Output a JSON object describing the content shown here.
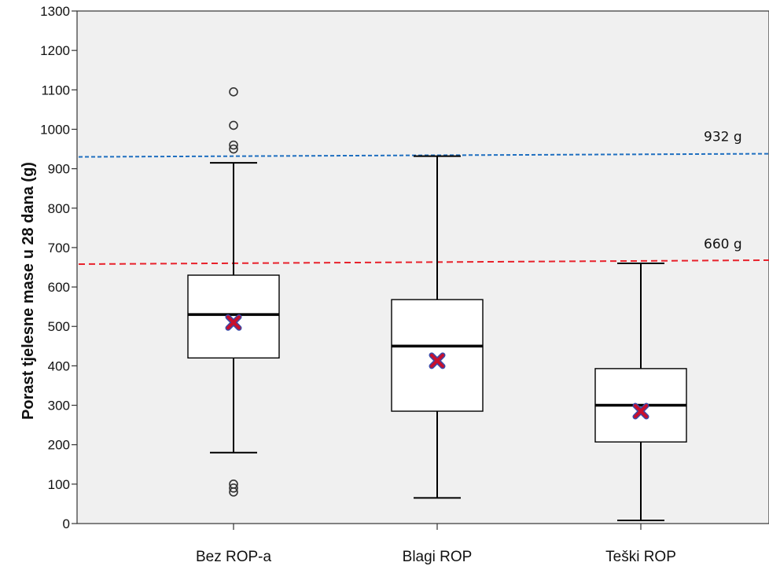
{
  "chart_data": {
    "type": "box",
    "ylabel": "Porast tjelesne mase u 28 dana (g)",
    "xlabel": "",
    "ylim": [
      0,
      1300
    ],
    "yticks": [
      0,
      100,
      200,
      300,
      400,
      500,
      600,
      700,
      800,
      900,
      1000,
      1100,
      1200,
      1300
    ],
    "categories": [
      "Bez ROP-a",
      "Blagi ROP",
      "Teški ROP"
    ],
    "boxes": [
      {
        "category": "Bez ROP-a",
        "whisker_low": 180,
        "q1": 420,
        "median": 530,
        "q3": 630,
        "whisker_high": 915,
        "mean": 510,
        "outliers": [
          80,
          90,
          100,
          950,
          960,
          1010,
          1095
        ]
      },
      {
        "category": "Blagi ROP",
        "whisker_low": 65,
        "q1": 285,
        "median": 450,
        "q3": 568,
        "whisker_high": 932,
        "mean": 413,
        "outliers": []
      },
      {
        "category": "Teški ROP",
        "whisker_low": 8,
        "q1": 207,
        "median": 300,
        "q3": 393,
        "whisker_high": 660,
        "mean": 285,
        "outliers": []
      }
    ],
    "reference_lines": [
      {
        "value": 932,
        "label": "932 g",
        "color": "#1f6fc0"
      },
      {
        "value": 660,
        "label": "660 g",
        "color": "#e8212b"
      }
    ],
    "colors": {
      "background": "#f0f0f0",
      "box_fill": "#ffffff",
      "stroke": "#000000",
      "mean_marker": "#c8102e",
      "mean_marker_edge": "#3a4aa8"
    },
    "grid": false
  }
}
